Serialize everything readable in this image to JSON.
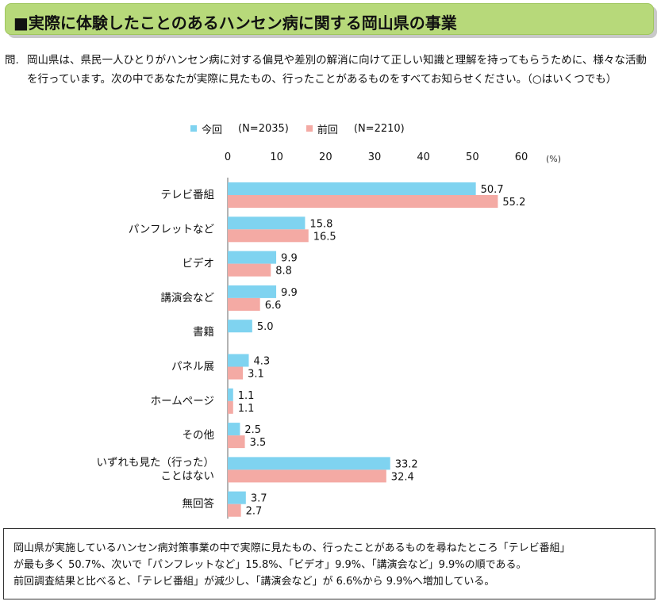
{
  "title": "■実際に体験したことのあるハンセン病に関する岡山県の事業",
  "question": {
    "label": "問.",
    "text": "岡山県は、県民一人ひとりがハンセン病に対する偏見や差別の解消に向けて正しい知識と理解を持ってもらうために、様々な活動を行っています。次の中であなたが実際に見たもの、行ったことがあるものをすべてお知らせください。（○はいくつでも）"
  },
  "legend": [
    {
      "name": "今回",
      "n": "(N=2035)",
      "color": "#7fd3f0"
    },
    {
      "name": "前回",
      "n": "(N=2210)",
      "color": "#f4aaa4"
    }
  ],
  "chart_data": {
    "type": "bar",
    "orientation": "horizontal",
    "categories": [
      "テレビ番組",
      "パンフレットなど",
      "ビデオ",
      "講演会など",
      "書籍",
      "パネル展",
      "ホームページ",
      "その他",
      "いずれも見た（行った）\nことはない",
      "無回答"
    ],
    "series": [
      {
        "name": "今回",
        "values": [
          50.7,
          15.8,
          9.9,
          9.9,
          5.0,
          4.3,
          1.1,
          2.5,
          33.2,
          3.7
        ],
        "labels": [
          "50.7",
          "15.8",
          "9.9",
          "9.9",
          "5.0",
          "4.3",
          "1.1",
          "2.5",
          "33.2",
          "3.7"
        ]
      },
      {
        "name": "前回",
        "values": [
          55.2,
          16.5,
          8.8,
          6.6,
          null,
          3.1,
          1.1,
          3.5,
          32.4,
          2.7
        ],
        "labels": [
          "55.2",
          "16.5",
          "8.8",
          "6.6",
          "",
          "3.1",
          "1.1",
          "3.5",
          "32.4",
          "2.7"
        ]
      }
    ],
    "xticks": [
      "0",
      "10",
      "20",
      "30",
      "40",
      "50",
      "60"
    ],
    "xlim": [
      0,
      60
    ],
    "unit": "(%)",
    "legend_position": "top",
    "grid": false
  },
  "summary": {
    "line1": "岡山県が実施しているハンセン病対策事業の中で実際に見たもの、行ったことがあるものを尋ねたところ「テレビ番組」",
    "line2": "が最も多く 50.7%、次いで「パンフレットなど」15.8%、「ビデオ」9.9%、「講演会など」9.9%の順である。",
    "line3": "前回調査結果と比べると、「テレビ番組」が減少し、「講演会など」が 6.6%から 9.9%へ増加している。"
  }
}
